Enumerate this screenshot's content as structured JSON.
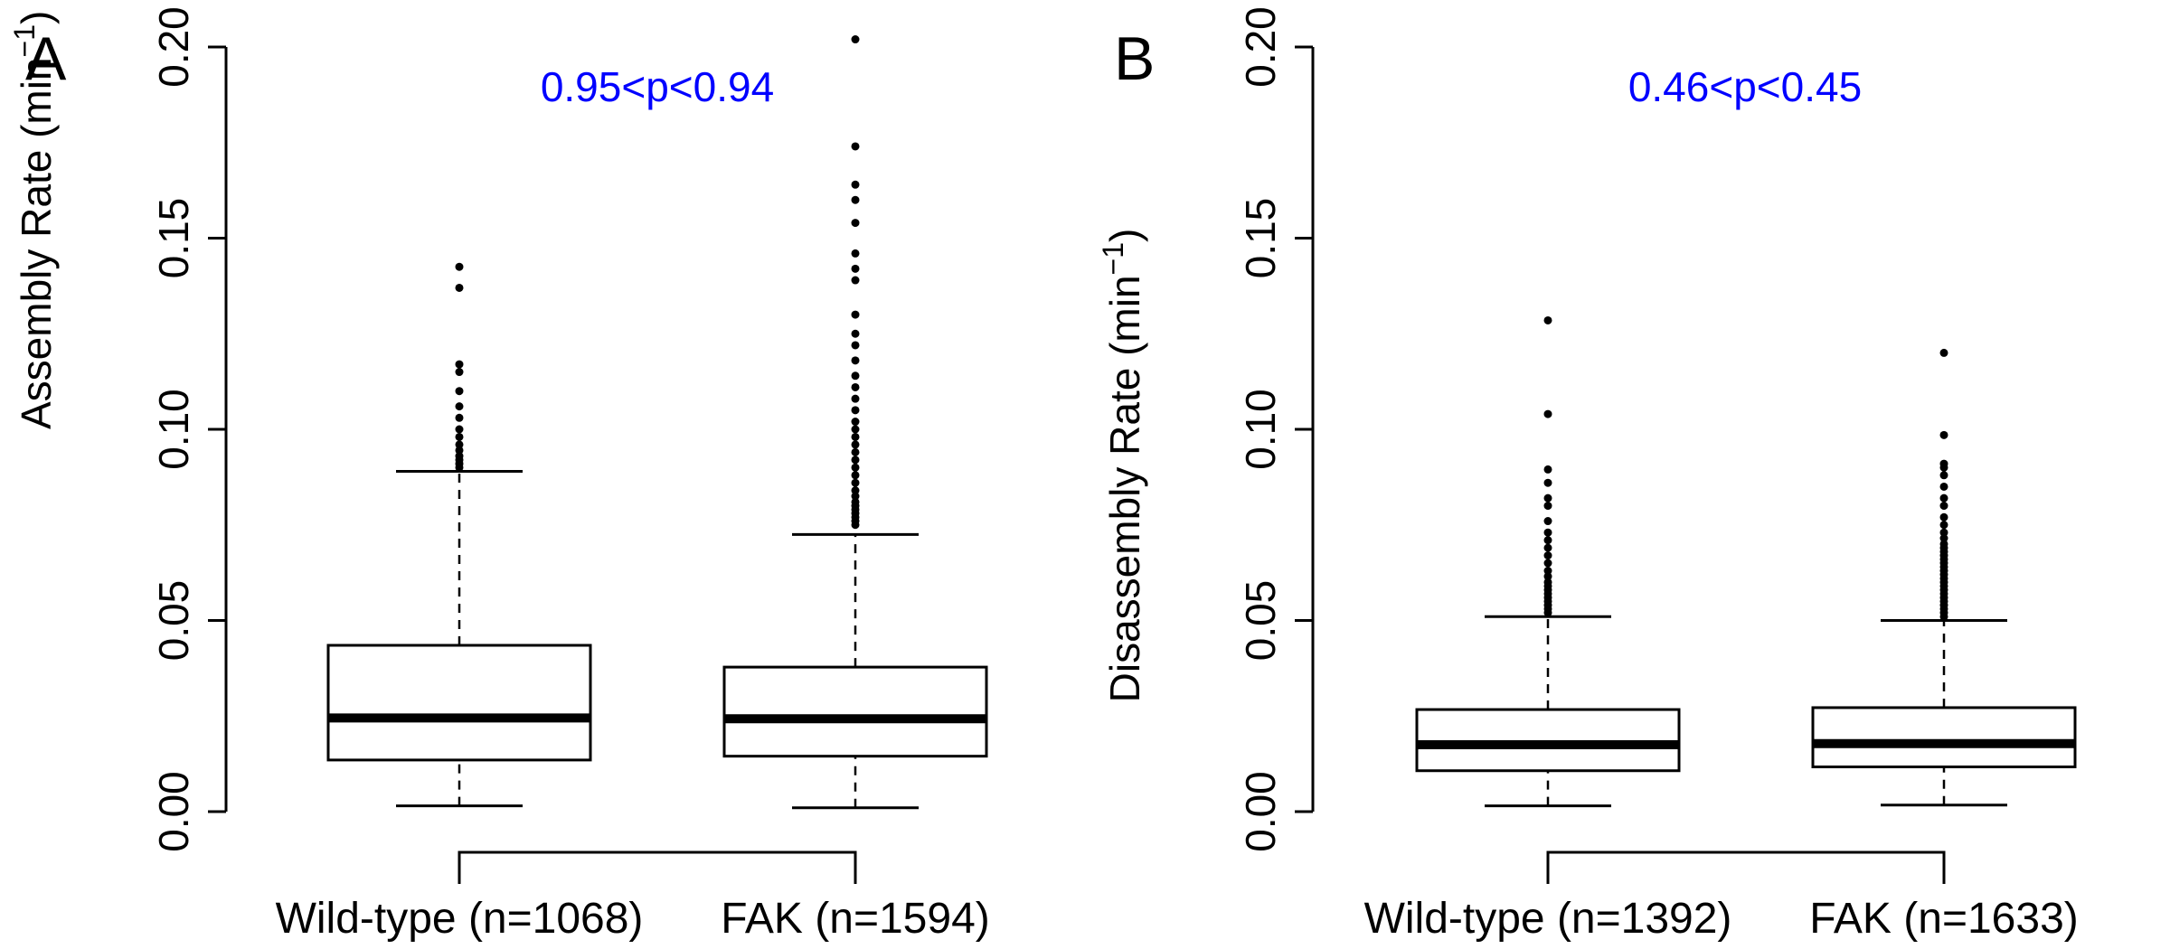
{
  "chart_data": [
    {
      "type": "box",
      "panel_label": "A",
      "ylabel": "Assembly Rate (min",
      "ylabel_sup": "−1",
      "ylabel_close": ")",
      "ylim": [
        0,
        0.2
      ],
      "yticks": [
        "0.00",
        "0.05",
        "0.10",
        "0.15",
        "0.20"
      ],
      "categories": [
        "Wild-type (n=1068)",
        "FAK (n=1594)"
      ],
      "annotation": "0.95<p<0.94",
      "annotation_color": "#0000ff",
      "boxes": [
        {
          "whisker_low": 0.0015,
          "q1": 0.0135,
          "median": 0.0245,
          "q3": 0.0435,
          "whisker_high": 0.089,
          "outliers": [
            0.09,
            0.091,
            0.092,
            0.093,
            0.0945,
            0.096,
            0.098,
            0.1,
            0.103,
            0.106,
            0.11,
            0.115,
            0.117,
            0.137,
            0.1425
          ]
        },
        {
          "whisker_low": 0.001,
          "q1": 0.0145,
          "median": 0.0243,
          "q3": 0.0378,
          "whisker_high": 0.0725,
          "outliers": [
            0.075,
            0.076,
            0.077,
            0.078,
            0.079,
            0.08,
            0.081,
            0.0825,
            0.084,
            0.086,
            0.088,
            0.09,
            0.092,
            0.094,
            0.096,
            0.098,
            0.1,
            0.102,
            0.105,
            0.108,
            0.111,
            0.114,
            0.118,
            0.122,
            0.125,
            0.13,
            0.139,
            0.142,
            0.146,
            0.154,
            0.16,
            0.164,
            0.174,
            0.202
          ]
        }
      ],
      "bracket": true
    },
    {
      "type": "box",
      "panel_label": "B",
      "ylabel": "Disassembly Rate (min",
      "ylabel_sup": "−1",
      "ylabel_close": ")",
      "ylim": [
        0,
        0.2
      ],
      "yticks": [
        "0.00",
        "0.05",
        "0.10",
        "0.15",
        "0.20"
      ],
      "categories": [
        "Wild-type (n=1392)",
        "FAK (n=1633)"
      ],
      "annotation": "0.46<p<0.45",
      "annotation_color": "#0000ff",
      "boxes": [
        {
          "whisker_low": 0.0015,
          "q1": 0.0107,
          "median": 0.0175,
          "q3": 0.0267,
          "whisker_high": 0.051,
          "outliers": [
            0.052,
            0.053,
            0.054,
            0.055,
            0.056,
            0.057,
            0.058,
            0.059,
            0.06,
            0.0615,
            0.063,
            0.065,
            0.067,
            0.069,
            0.071,
            0.073,
            0.076,
            0.08,
            0.082,
            0.086,
            0.0895,
            0.104,
            0.1285
          ]
        },
        {
          "whisker_low": 0.0017,
          "q1": 0.0117,
          "median": 0.0178,
          "q3": 0.0272,
          "whisker_high": 0.05,
          "outliers": [
            0.051,
            0.052,
            0.053,
            0.054,
            0.055,
            0.056,
            0.057,
            0.058,
            0.059,
            0.06,
            0.061,
            0.062,
            0.063,
            0.064,
            0.065,
            0.066,
            0.067,
            0.068,
            0.069,
            0.07,
            0.0715,
            0.073,
            0.075,
            0.077,
            0.08,
            0.082,
            0.085,
            0.088,
            0.09,
            0.091,
            0.0985,
            0.12
          ]
        }
      ],
      "bracket": true
    }
  ]
}
